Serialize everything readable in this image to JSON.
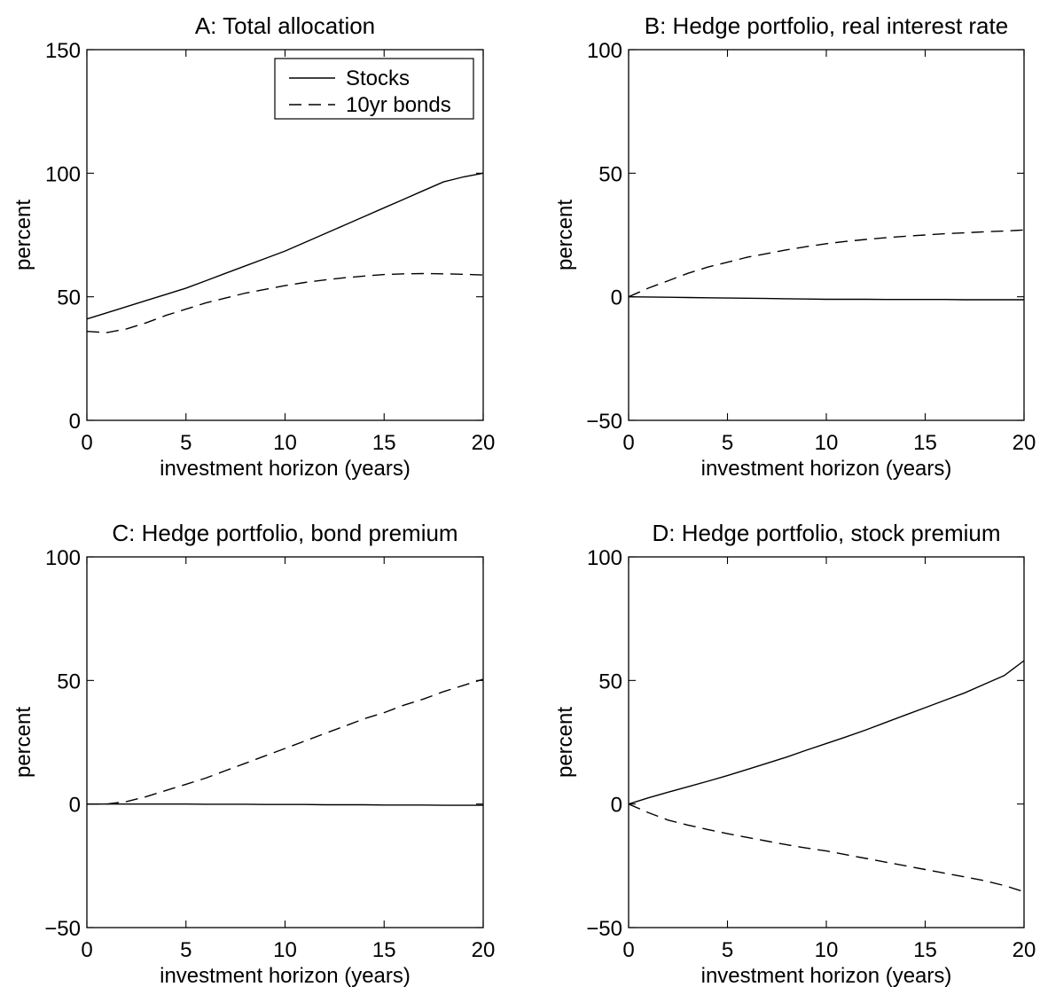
{
  "chart_data": [
    {
      "type": "line",
      "title": "A: Total allocation",
      "xlabel": "investment horizon (years)",
      "ylabel": "percent",
      "xlim": [
        0,
        20
      ],
      "ylim": [
        0,
        150
      ],
      "xticks": [
        0,
        5,
        10,
        15,
        20
      ],
      "yticks": [
        0,
        50,
        100,
        150
      ],
      "legend": {
        "placement": "top-right",
        "entries": [
          "Stocks",
          "10yr bonds"
        ]
      },
      "grid": false,
      "x": [
        0,
        1,
        2,
        3,
        4,
        5,
        6,
        7,
        8,
        9,
        10,
        11,
        12,
        13,
        14,
        15,
        16,
        17,
        18,
        19,
        20
      ],
      "series": [
        {
          "name": "Stocks",
          "style": "solid",
          "values": [
            41,
            43.5,
            46,
            48.5,
            51,
            53.5,
            56.5,
            59.5,
            62.5,
            65.5,
            68.5,
            72,
            75.5,
            79,
            82.5,
            86,
            89.5,
            93,
            96.5,
            98.5,
            100
          ]
        },
        {
          "name": "10yr bonds",
          "style": "dashed",
          "values": [
            36,
            35.5,
            37,
            39.5,
            42.5,
            45,
            47.5,
            49.5,
            51.5,
            53,
            54.5,
            55.8,
            56.8,
            57.7,
            58.4,
            59,
            59.3,
            59.4,
            59.3,
            59.1,
            58.8
          ]
        }
      ]
    },
    {
      "type": "line",
      "title": "B: Hedge portfolio, real interest rate",
      "xlabel": "investment horizon (years)",
      "ylabel": "percent",
      "xlim": [
        0,
        20
      ],
      "ylim": [
        -50,
        100
      ],
      "xticks": [
        0,
        5,
        10,
        15,
        20
      ],
      "yticks": [
        -50,
        0,
        50,
        100
      ],
      "grid": false,
      "x": [
        0,
        1,
        2,
        3,
        4,
        5,
        6,
        7,
        8,
        9,
        10,
        11,
        12,
        13,
        14,
        15,
        16,
        17,
        18,
        19,
        20
      ],
      "series": [
        {
          "style": "solid",
          "values": [
            0,
            -0.1,
            -0.2,
            -0.3,
            -0.4,
            -0.5,
            -0.6,
            -0.7,
            -0.8,
            -0.9,
            -1,
            -1,
            -1,
            -1.1,
            -1.1,
            -1.1,
            -1.1,
            -1.2,
            -1.2,
            -1.2,
            -1.2
          ]
        },
        {
          "style": "dashed",
          "values": [
            0,
            3.5,
            6.5,
            9.5,
            12,
            14,
            16,
            17.5,
            19,
            20.3,
            21.5,
            22.4,
            23.2,
            23.9,
            24.5,
            25,
            25.5,
            25.9,
            26.3,
            26.6,
            27
          ]
        }
      ]
    },
    {
      "type": "line",
      "title": "C: Hedge portfolio, bond premium",
      "xlabel": "investment horizon (years)",
      "ylabel": "percent",
      "xlim": [
        0,
        20
      ],
      "ylim": [
        -50,
        100
      ],
      "xticks": [
        0,
        5,
        10,
        15,
        20
      ],
      "yticks": [
        -50,
        0,
        50,
        100
      ],
      "grid": false,
      "x": [
        0,
        1,
        2,
        3,
        4,
        5,
        6,
        7,
        8,
        9,
        10,
        11,
        12,
        13,
        14,
        15,
        16,
        17,
        18,
        19,
        20
      ],
      "series": [
        {
          "style": "solid",
          "values": [
            0,
            0,
            0,
            0,
            0,
            0,
            -0.1,
            -0.1,
            -0.1,
            -0.2,
            -0.2,
            -0.2,
            -0.3,
            -0.3,
            -0.3,
            -0.4,
            -0.4,
            -0.4,
            -0.5,
            -0.5,
            -0.5
          ]
        },
        {
          "style": "dashed",
          "values": [
            0,
            0,
            1,
            3,
            5.5,
            8,
            10.5,
            13.5,
            16.5,
            19.5,
            22.5,
            25.5,
            28.5,
            31.5,
            34.5,
            37,
            40,
            42.5,
            45.5,
            48,
            50.5
          ]
        }
      ]
    },
    {
      "type": "line",
      "title": "D: Hedge portfolio, stock premium",
      "xlabel": "investment horizon (years)",
      "ylabel": "percent",
      "xlim": [
        0,
        20
      ],
      "ylim": [
        -50,
        100
      ],
      "xticks": [
        0,
        5,
        10,
        15,
        20
      ],
      "yticks": [
        -50,
        0,
        50,
        100
      ],
      "grid": false,
      "x": [
        0,
        1,
        2,
        3,
        4,
        5,
        6,
        7,
        8,
        9,
        10,
        11,
        12,
        13,
        14,
        15,
        16,
        17,
        18,
        19,
        20
      ],
      "series": [
        {
          "style": "solid",
          "values": [
            0,
            2.5,
            4.8,
            7,
            9.2,
            11.5,
            14,
            16.5,
            19,
            21.8,
            24.5,
            27.2,
            30,
            33,
            36,
            39,
            42,
            45,
            48.5,
            52,
            58
          ]
        },
        {
          "style": "dashed",
          "values": [
            0,
            -3.5,
            -6.5,
            -8.5,
            -10.3,
            -12,
            -13.5,
            -15,
            -16.5,
            -17.8,
            -19,
            -20.5,
            -22,
            -23.5,
            -25,
            -26.5,
            -28,
            -29.5,
            -31,
            -33,
            -35.5
          ]
        }
      ]
    }
  ]
}
